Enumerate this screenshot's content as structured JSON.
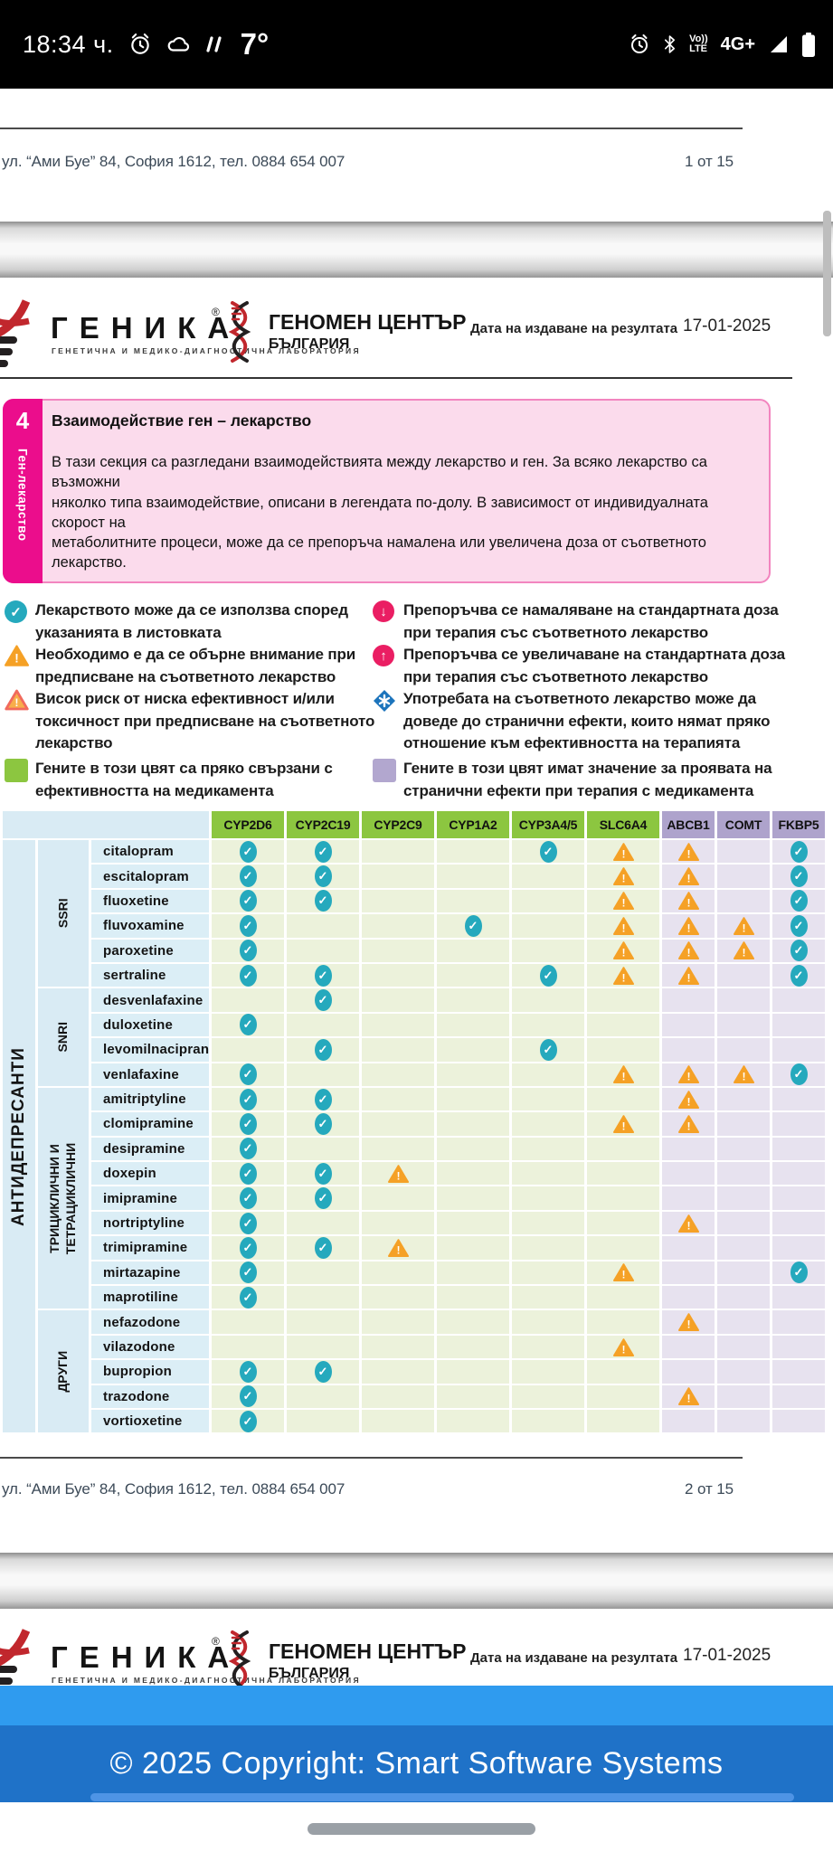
{
  "status_bar": {
    "time": "18:34 ч.",
    "temperature": "7°",
    "volte_top": "Vo))",
    "volte_bottom": "LTE",
    "network": "4G+"
  },
  "page1_footer": {
    "address": "ул. “Ами Буе” 84, София 1612, тел. 0884 654 007",
    "page_number": "1 от 15"
  },
  "page2_footer": {
    "address": "ул. “Ами Буе” 84, София 1612, тел. 0884 654 007",
    "page_number": "2 от 15"
  },
  "report_header": {
    "genika_name": "ГЕНИКА",
    "genika_reg": "®",
    "genika_subtitle": "ГЕНЕТИЧНА И МЕДИКО-ДИАГНОСТИЧНА ЛАБОРАТОРИЯ",
    "center_name": "ГЕНОМЕН ЦЕНТЪР",
    "center_country": "БЪЛГАРИЯ",
    "date_label": "Дата на издаване на резултата",
    "date_value": "17-01-2025"
  },
  "section": {
    "number": "4",
    "side_label": "Ген-лекарство",
    "title": "Взаимодействие ген – лекарство",
    "body": "В тази секция са разгледани взаимодействията между лекарство и ген. За всяко лекарство са възможни\nняколко типа взаимодействие, описани в легендата по-долу. В зависимост от индивидуалната скорост на\nметаболитните процеси, може да се препоръча намалена или увеличена доза от съответното лекарство."
  },
  "legend": {
    "left": [
      {
        "icon": "check-circle",
        "text": "Лекарството може да се използва според\nуказанията в листовката"
      },
      {
        "icon": "warn-triangle",
        "text": "Необходимо е да се обърне внимание при\nпредписване на съответното лекарство"
      },
      {
        "icon": "warn-triangle-risk",
        "text": "Висок риск от ниска ефективност и/или\nтоксичност при предписване на съответното\nлекарство"
      },
      {
        "icon": "square-green",
        "text": "Гените в този цвят са пряко свързани с\nефективността на медикамента"
      }
    ],
    "right": [
      {
        "icon": "circle-down",
        "text": "Препоръчва се намаляване на стандартната доза\nпри терапия със съответното лекарство"
      },
      {
        "icon": "circle-up",
        "text": "Препоръчва се увеличаване на стандартната доза\nпри терапия със съответното лекарство"
      },
      {
        "icon": "diamond-star",
        "text": "Употребата на съответното лекарство може да\nдоведе до странични ефекти, които нямат пряко\nотношение към ефективността на терапията"
      },
      {
        "icon": "square-purple",
        "text": "Гените в този цвят имат значение за проявата на\nстранични ефекти при терапия с медикамента"
      }
    ]
  },
  "table": {
    "category": "АНТИДЕПРЕСАНТИ",
    "genes": [
      {
        "name": "CYP2D6",
        "type": "efficacy"
      },
      {
        "name": "CYP2C19",
        "type": "efficacy"
      },
      {
        "name": "CYP2C9",
        "type": "efficacy"
      },
      {
        "name": "CYP1A2",
        "type": "efficacy"
      },
      {
        "name": "CYP3A4/5",
        "type": "efficacy"
      },
      {
        "name": "SLC6A4",
        "type": "efficacy"
      },
      {
        "name": "ABCB1",
        "type": "side"
      },
      {
        "name": "COMT",
        "type": "side"
      },
      {
        "name": "FKBP5",
        "type": "side"
      }
    ],
    "groups": [
      {
        "label": "SSRI",
        "drugs": [
          {
            "name": "citalopram",
            "markers": [
              "check",
              "check",
              "",
              "",
              "check",
              "warn",
              "warn",
              "",
              "check"
            ]
          },
          {
            "name": "escitalopram",
            "markers": [
              "check",
              "check",
              "",
              "",
              "",
              "warn",
              "warn",
              "",
              "check"
            ]
          },
          {
            "name": "fluoxetine",
            "markers": [
              "check",
              "check",
              "",
              "",
              "",
              "warn",
              "warn",
              "",
              "check"
            ]
          },
          {
            "name": "fluvoxamine",
            "markers": [
              "check",
              "",
              "",
              "check",
              "",
              "warn",
              "warn",
              "warn",
              "check"
            ]
          },
          {
            "name": "paroxetine",
            "markers": [
              "check",
              "",
              "",
              "",
              "",
              "warn",
              "warn",
              "warn",
              "check"
            ]
          },
          {
            "name": "sertraline",
            "markers": [
              "check",
              "check",
              "",
              "",
              "check",
              "warn",
              "warn",
              "",
              "check"
            ]
          }
        ]
      },
      {
        "label": "SNRI",
        "drugs": [
          {
            "name": "desvenlafaxine",
            "markers": [
              "",
              "check",
              "",
              "",
              "",
              "",
              "",
              "",
              ""
            ]
          },
          {
            "name": "duloxetine",
            "markers": [
              "check",
              "",
              "",
              "",
              "",
              "",
              "",
              "",
              ""
            ]
          },
          {
            "name": "levomilnacipran",
            "markers": [
              "",
              "check",
              "",
              "",
              "check",
              "",
              "",
              "",
              ""
            ]
          },
          {
            "name": "venlafaxine",
            "markers": [
              "check",
              "",
              "",
              "",
              "",
              "warn",
              "warn",
              "warn",
              "check"
            ]
          }
        ]
      },
      {
        "label": "ТРИЦИКЛИЧНИ И\nТЕТРАЦИКЛИЧНИ",
        "drugs": [
          {
            "name": "amitriptyline",
            "markers": [
              "check",
              "check",
              "",
              "",
              "",
              "",
              "warn",
              "",
              ""
            ]
          },
          {
            "name": "clomipramine",
            "markers": [
              "check",
              "check",
              "",
              "",
              "",
              "warn",
              "warn",
              "",
              ""
            ]
          },
          {
            "name": "desipramine",
            "markers": [
              "check",
              "",
              "",
              "",
              "",
              "",
              "",
              "",
              ""
            ]
          },
          {
            "name": "doxepin",
            "markers": [
              "check",
              "check",
              "warn",
              "",
              "",
              "",
              "",
              "",
              ""
            ]
          },
          {
            "name": "imipramine",
            "markers": [
              "check",
              "check",
              "",
              "",
              "",
              "",
              "",
              "",
              ""
            ]
          },
          {
            "name": "nortriptyline",
            "markers": [
              "check",
              "",
              "",
              "",
              "",
              "",
              "warn",
              "",
              ""
            ]
          },
          {
            "name": "trimipramine",
            "markers": [
              "check",
              "check",
              "warn",
              "",
              "",
              "",
              "",
              "",
              ""
            ]
          },
          {
            "name": "mirtazapine",
            "markers": [
              "check",
              "",
              "",
              "",
              "",
              "warn",
              "",
              "",
              "check"
            ]
          },
          {
            "name": "maprotiline",
            "markers": [
              "check",
              "",
              "",
              "",
              "",
              "",
              "",
              "",
              ""
            ]
          }
        ]
      },
      {
        "label": "ДРУГИ",
        "drugs": [
          {
            "name": "nefazodone",
            "markers": [
              "",
              "",
              "",
              "",
              "",
              "",
              "warn",
              "",
              ""
            ]
          },
          {
            "name": "vilazodone",
            "markers": [
              "",
              "",
              "",
              "",
              "",
              "warn",
              "",
              "",
              ""
            ]
          },
          {
            "name": "bupropion",
            "markers": [
              "check",
              "check",
              "",
              "",
              "",
              "",
              "",
              "",
              ""
            ]
          },
          {
            "name": "trazodone",
            "markers": [
              "check",
              "",
              "",
              "",
              "",
              "",
              "warn",
              "",
              ""
            ]
          },
          {
            "name": "vortioxetine",
            "markers": [
              "check",
              "",
              "",
              "",
              "",
              "",
              "",
              "",
              ""
            ]
          }
        ]
      }
    ]
  },
  "footer_bar": {
    "copyright": "© 2025 Copyright: Smart Software Systems"
  },
  "colors": {
    "accent_pink": "#EB0D8C",
    "gene_efficacy_header": "#8CC640",
    "gene_side_header": "#AEA3CC",
    "check_marker": "#25A9BD",
    "warning_marker": "#F5A126",
    "band_light_blue": "#2F9BEF",
    "band_dark_blue": "#1F72C8"
  }
}
